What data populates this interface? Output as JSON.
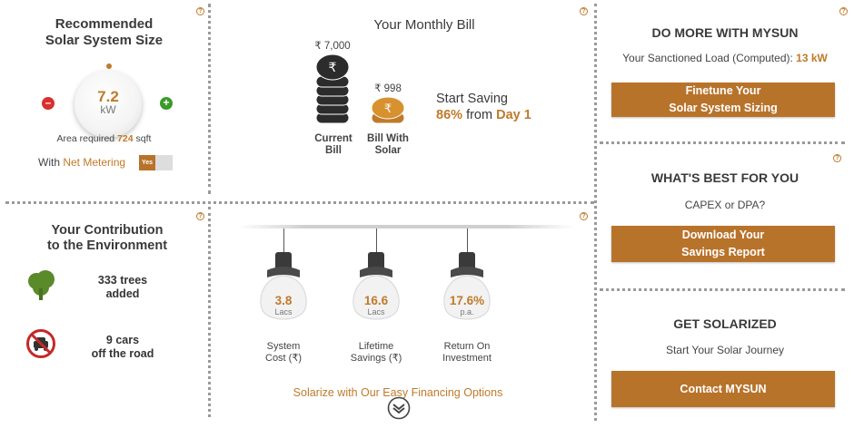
{
  "solar_size": {
    "title_line1": "Recommended",
    "title_line2": "Solar System Size",
    "value": "7.2",
    "unit": "kW",
    "area_prefix": "Area required",
    "area_value": "724",
    "area_unit": "sqft",
    "net_metering_prefix": "With",
    "net_metering_label": "Net Metering",
    "toggle_label": "Yes",
    "help": "?"
  },
  "bill": {
    "title": "Your Monthly Bill",
    "current_amount": "₹ 7,000",
    "current_label_line1": "Current",
    "current_label_line2": "Bill",
    "solar_amount": "₹ 998",
    "solar_label_line1": "Bill With",
    "solar_label_line2": "Solar",
    "saving_line1": "Start Saving",
    "saving_percent": "86%",
    "saving_from": "from",
    "saving_day": "Day 1",
    "help": "?"
  },
  "mysun": {
    "title": "DO MORE WITH MYSUN",
    "load_label": "Your Sanctioned Load (Computed):",
    "load_value": "13 kW",
    "button_line1": "Finetune Your",
    "button_line2": "Solar System Sizing",
    "help": "?"
  },
  "environment": {
    "title_line1": "Your Contribution",
    "title_line2": "to the Environment",
    "trees_value": "333 trees",
    "trees_label": "added",
    "cars_value": "9 cars",
    "cars_label": "off the road",
    "help": "?"
  },
  "financials": {
    "bulbs": [
      {
        "value": "3.8",
        "unit": "Lacs",
        "label_line1": "System",
        "label_line2": "Cost (₹)"
      },
      {
        "value": "16.6",
        "unit": "Lacs",
        "label_line1": "Lifetime",
        "label_line2": "Savings (₹)"
      },
      {
        "value": "17.6%",
        "unit": "p.a.",
        "label_line1": "Return On",
        "label_line2": "Investment"
      }
    ],
    "financing_link": "Solarize with Our Easy Financing Options",
    "help": "?"
  },
  "best": {
    "title": "WHAT'S BEST FOR YOU",
    "question": "CAPEX or DPA?",
    "button_line1": "Download Your",
    "button_line2": "Savings Report",
    "help": "?"
  },
  "solarized": {
    "title": "GET SOLARIZED",
    "subtitle": "Start Your Solar Journey",
    "button": "Contact MYSUN"
  },
  "colors": {
    "accent": "#b8732b",
    "accent_text": "#c07a2a",
    "minus": "#d9302c",
    "plus": "#3a9a2a",
    "tree": "#5a8a2a",
    "no_car": "#c62828"
  }
}
